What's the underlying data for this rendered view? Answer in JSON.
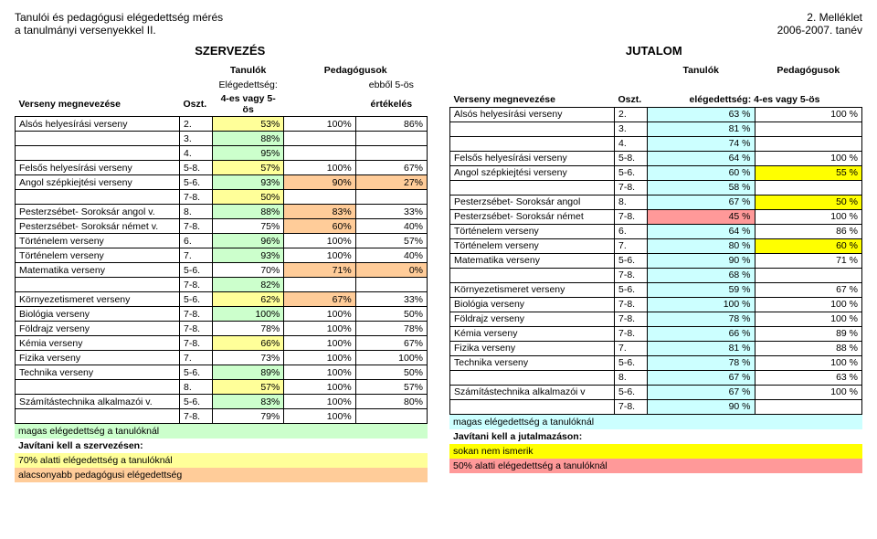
{
  "header": {
    "title_line1": "Tanulói és pedagógusi elégedettség mérés",
    "title_line2": "a tanulmányi versenyekkel II.",
    "right_line1": "2. Melléklet",
    "right_line2": "2006-2007. tanév"
  },
  "section_left": "SZERVEZÉS",
  "section_right": "JUTALOM",
  "left_col_headers": {
    "tanulok": "Tanulók",
    "pedag": "Pedagógusok",
    "sub1": "Elégedettség:",
    "sub2": "ebből 5-ös",
    "verseny": "Verseny megnevezése",
    "oszt": "Oszt.",
    "skala": "4-es vagy 5-ös",
    "ertek": "értékelés"
  },
  "right_col_headers": {
    "tanulok": "Tanulók",
    "pedag": "Pedagógusok",
    "verseny": "Verseny megnevezése",
    "oszt": "Oszt.",
    "ertek": "elégedettség: 4-es vagy 5-ös"
  },
  "hl": {
    "szerv_high": "#ccffcc",
    "szerv_low": "#ffff99",
    "szerv_ped": "#ffcc99",
    "jut_high": "#ccffff",
    "jut_sokan": "#ffff00",
    "jut_low": "#ff9999"
  },
  "szerv_rows": [
    {
      "name": "Alsós helyesírási verseny",
      "oszt": "2.",
      "t": "53%",
      "p": "100%",
      "o": "86%",
      "t_hl": "low"
    },
    {
      "name": "",
      "oszt": "3.",
      "t": "88%",
      "p": "",
      "o": "",
      "t_hl": "high"
    },
    {
      "name": "",
      "oszt": "4.",
      "t": "95%",
      "p": "",
      "o": "",
      "t_hl": "high"
    },
    {
      "name": "Felsős helyesírási  verseny",
      "oszt": "5-8.",
      "t": "57%",
      "p": "100%",
      "o": "67%",
      "t_hl": "low"
    },
    {
      "name": "Angol szépkiejtési  verseny",
      "oszt": "5-6.",
      "t": "93%",
      "p": "90%",
      "o": "27%",
      "t_hl": "high",
      "p_hl": "ped",
      "o_hl": "ped"
    },
    {
      "name": "",
      "oszt": "7-8.",
      "t": "50%",
      "p": "",
      "o": "",
      "t_hl": "low"
    },
    {
      "name": "Pesterzsébet- Soroksár angol v.",
      "oszt": "8.",
      "t": "88%",
      "p": "83%",
      "o": "33%",
      "t_hl": "high",
      "p_hl": "ped"
    },
    {
      "name": "Pesterzsébet- Soroksár német v.",
      "oszt": "7-8.",
      "t": "75%",
      "p": "60%",
      "o": "40%",
      "p_hl": "ped"
    },
    {
      "name": "Történelem  verseny",
      "oszt": "6.",
      "t": "96%",
      "p": "100%",
      "o": "57%",
      "t_hl": "high"
    },
    {
      "name": "Történelem  verseny",
      "oszt": "7.",
      "t": "93%",
      "p": "100%",
      "o": "40%",
      "t_hl": "high"
    },
    {
      "name": "Matematika  verseny",
      "oszt": "5-6.",
      "t": "70%",
      "p": "71%",
      "o": "0%",
      "p_hl": "ped",
      "o_hl": "ped"
    },
    {
      "name": "",
      "oszt": "7-8.",
      "t": "82%",
      "p": "",
      "o": "",
      "t_hl": "high"
    },
    {
      "name": "Környezetismeret  verseny",
      "oszt": "5-6.",
      "t": "62%",
      "p": "67%",
      "o": "33%",
      "t_hl": "low",
      "p_hl": "ped"
    },
    {
      "name": "Biológia  verseny",
      "oszt": "7-8.",
      "t": "100%",
      "p": "100%",
      "o": "50%",
      "t_hl": "high"
    },
    {
      "name": "Földrajz  verseny",
      "oszt": "7-8.",
      "t": "78%",
      "p": "100%",
      "o": "78%"
    },
    {
      "name": "Kémia  verseny",
      "oszt": "7-8.",
      "t": "66%",
      "p": "100%",
      "o": "67%",
      "t_hl": "low"
    },
    {
      "name": "Fizika  verseny",
      "oszt": "7.",
      "t": "73%",
      "p": "100%",
      "o": "100%"
    },
    {
      "name": "Technika  verseny",
      "oszt": "5-6.",
      "t": "89%",
      "p": "100%",
      "o": "50%",
      "t_hl": "high"
    },
    {
      "name": "",
      "oszt": "8.",
      "t": "57%",
      "p": "100%",
      "o": "57%",
      "t_hl": "low"
    },
    {
      "name": "Számítástechnika alkalmazói v.",
      "oszt": "5-6.",
      "t": "83%",
      "p": "100%",
      "o": "80%",
      "t_hl": "high"
    },
    {
      "name": "",
      "oszt": "7-8.",
      "t": "79%",
      "p": "100%",
      "o": ""
    }
  ],
  "szerv_notes": [
    {
      "text": "magas elégedettség a tanulóknál",
      "hl": "szerv_high"
    },
    {
      "text": "Javítani kell a szervezésen:",
      "hl": "",
      "bold": true
    },
    {
      "text": "70% alatti elégedettség a tanulóknál",
      "hl": "szerv_low"
    },
    {
      "text": "alacsonyabb pedagógusi elégedettség",
      "hl": "szerv_ped"
    }
  ],
  "jut_rows": [
    {
      "name": "Alsós helyesírási verseny",
      "oszt": "2.",
      "t": "63 %",
      "p": "100 %",
      "t_hl": "high"
    },
    {
      "name": "",
      "oszt": "3.",
      "t": "81 %",
      "p": "",
      "t_hl": "high"
    },
    {
      "name": "",
      "oszt": "4.",
      "t": "74 %",
      "p": "",
      "t_hl": "high"
    },
    {
      "name": "Felsős helyesírási  verseny",
      "oszt": "5-8.",
      "t": "64 %",
      "p": "100 %",
      "t_hl": "high"
    },
    {
      "name": "Angol szépkiejtési  verseny",
      "oszt": "5-6.",
      "t": "60 %",
      "p": "55 %",
      "t_hl": "high",
      "p_hl": "sokan"
    },
    {
      "name": "",
      "oszt": "7-8.",
      "t": "58 %",
      "p": "",
      "t_hl": "high"
    },
    {
      "name": "Pesterzsébet- Soroksár angol",
      "oszt": "8.",
      "t": "67 %",
      "p": "50 %",
      "t_hl": "high",
      "p_hl": "sokan"
    },
    {
      "name": "Pesterzsébet- Soroksár német",
      "oszt": "7-8.",
      "t": "45 %",
      "p": "100 %",
      "t_hl": "low"
    },
    {
      "name": "Történelem  verseny",
      "oszt": "6.",
      "t": "64 %",
      "p": "86 %",
      "t_hl": "high"
    },
    {
      "name": "Történelem  verseny",
      "oszt": "7.",
      "t": "80 %",
      "p": "60 %",
      "t_hl": "high",
      "p_hl": "sokan"
    },
    {
      "name": "Matematika  verseny",
      "oszt": "5-6.",
      "t": "90 %",
      "p": "71 %",
      "t_hl": "high"
    },
    {
      "name": "",
      "oszt": "7-8.",
      "t": "68 %",
      "p": "",
      "t_hl": "high"
    },
    {
      "name": "Környezetismeret  verseny",
      "oszt": "5-6.",
      "t": "59 %",
      "p": "67 %",
      "t_hl": "high"
    },
    {
      "name": "Biológia  verseny",
      "oszt": "7-8.",
      "t": "100 %",
      "p": "100 %",
      "t_hl": "high"
    },
    {
      "name": "Földrajz  verseny",
      "oszt": "7-8.",
      "t": "78 %",
      "p": "100 %",
      "t_hl": "high"
    },
    {
      "name": "Kémia  verseny",
      "oszt": "7-8.",
      "t": "66 %",
      "p": "89 %",
      "t_hl": "high"
    },
    {
      "name": "Fizika  verseny",
      "oszt": "7.",
      "t": "81 %",
      "p": "88 %",
      "t_hl": "high"
    },
    {
      "name": "Technika  verseny",
      "oszt": "5-6.",
      "t": "78 %",
      "p": "100 %",
      "t_hl": "high"
    },
    {
      "name": "",
      "oszt": "8.",
      "t": "67 %",
      "p": "63 %",
      "t_hl": "high"
    },
    {
      "name": "Számítástechnika alkalmazói v",
      "oszt": "5-6.",
      "t": "67 %",
      "p": "100 %",
      "t_hl": "high"
    },
    {
      "name": "",
      "oszt": "7-8.",
      "t": "90 %",
      "p": "",
      "t_hl": "high"
    }
  ],
  "jut_notes": [
    {
      "text": "magas elégedettség a tanulóknál",
      "hl": "jut_high"
    },
    {
      "text": "Javítani kell a jutalmazáson:",
      "hl": "",
      "bold": true
    },
    {
      "text": "sokan nem ismerik",
      "hl": "jut_sokan"
    },
    {
      "text": "50% alatti elégedettség a tanulóknál",
      "hl": "jut_low"
    }
  ]
}
